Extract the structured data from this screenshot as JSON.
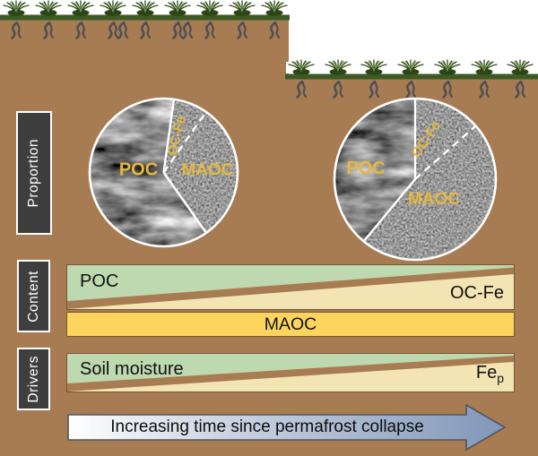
{
  "side_labels": {
    "proportion": "Proportion",
    "content": "Content",
    "drivers": "Drivers"
  },
  "chart_data": [
    {
      "type": "pie",
      "position": "left",
      "labels": [
        "POC",
        "MAOC",
        "OC-Fe"
      ],
      "values": [
        62,
        30.5,
        7.5
      ],
      "unit": "percent of soil organic carbon"
    },
    {
      "type": "pie",
      "position": "right",
      "labels": [
        "POC",
        "MAOC",
        "OC-Fe"
      ],
      "values": [
        39,
        47.5,
        13.5
      ],
      "unit": "percent of soil organic carbon"
    }
  ],
  "content_section": {
    "decreasing_wedge": "POC",
    "increasing_wedge": "OC-Fe",
    "constant_bar": "MAOC"
  },
  "drivers_section": {
    "decreasing_wedge": "Soil moisture",
    "increasing_wedge_base": "Fe",
    "increasing_wedge_sub": "p"
  },
  "timeline_arrow": {
    "label": "Increasing time since permafrost collapse"
  },
  "surface": {
    "upper_grass_tufts": 9,
    "lower_grass_tufts": 7
  },
  "colors": {
    "soil": "#a87c52",
    "surface_green": "#3c5a24",
    "wedge_green": "#bed8b0",
    "wedge_cream": "#f3e4b4",
    "maoc_yellow": "#fcd55e",
    "pie_label_gold": "#e8b83d",
    "arrow_blue": "#8097b9",
    "label_box": "#3e3e3e"
  }
}
